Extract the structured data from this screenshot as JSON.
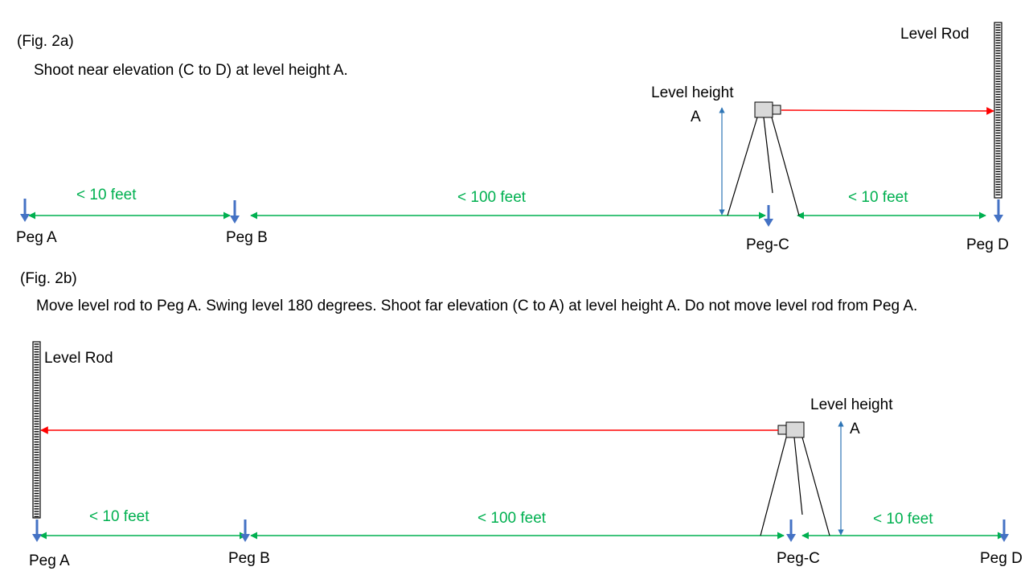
{
  "colors": {
    "dimension_line": "#00b050",
    "sight_line": "#ff0000",
    "peg_arrow": "#4472c4",
    "height_arrow": "#2e75b6",
    "instrument": "#d9d9d9"
  },
  "fig2a": {
    "label": "(Fig. 2a)",
    "caption": "Shoot near elevation (C to D) at level height A.",
    "level_rod_label": "Level Rod",
    "level_height_label": "Level height",
    "level_height_letter": "A",
    "distances": [
      "< 10 feet",
      "< 100 feet",
      "< 10 feet"
    ],
    "pegs": [
      "Peg A",
      "Peg B",
      "Peg-C",
      "Peg D"
    ]
  },
  "fig2b": {
    "label": "(Fig. 2b)",
    "caption": "Move level rod to Peg A. Swing level 180 degrees. Shoot far elevation (C to A) at level height A. Do not move level rod from Peg A.",
    "level_rod_label": "Level Rod",
    "level_height_label": "Level height",
    "level_height_letter": "A",
    "distances": [
      "< 10 feet",
      "< 100 feet",
      "< 10 feet"
    ],
    "pegs": [
      "Peg A",
      "Peg B",
      "Peg-C",
      "Peg D"
    ]
  }
}
